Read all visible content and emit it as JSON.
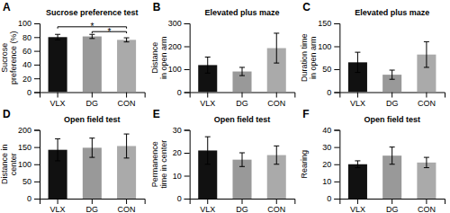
{
  "chart_data": [
    {
      "type": "bar",
      "label": "A",
      "title": "Sucrose preference test",
      "ylabel": "Sucrose\npreference (%)",
      "categories": [
        "VLX",
        "DG",
        "CON"
      ],
      "values": [
        80,
        81,
        76
      ],
      "errors": [
        4,
        3,
        3
      ],
      "colors": [
        "#111111",
        "#999999",
        "#aaaaaa"
      ],
      "ylim": [
        0,
        100
      ],
      "yticks": [
        0,
        20,
        40,
        60,
        80,
        100
      ],
      "grid": false,
      "annotations": [
        {
          "text": "*",
          "from": "VLX",
          "to": "CON",
          "y": 95
        },
        {
          "text": "*",
          "from": "DG",
          "to": "CON",
          "y": 88
        }
      ]
    },
    {
      "type": "bar",
      "label": "B",
      "title": "Elevated plus maze",
      "ylabel": "Distance\nin open arm",
      "categories": [
        "VLX",
        "DG",
        "CON"
      ],
      "values": [
        118,
        90,
        192
      ],
      "errors": [
        35,
        18,
        65
      ],
      "colors": [
        "#111111",
        "#999999",
        "#aaaaaa"
      ],
      "ylim": [
        0,
        300
      ],
      "yticks": [
        0,
        100,
        200,
        300
      ],
      "grid": false
    },
    {
      "type": "bar",
      "label": "C",
      "title": "Elevated plus maze",
      "ylabel": "Duration time\nin open arm",
      "categories": [
        "VLX",
        "DG",
        "CON"
      ],
      "values": [
        65,
        38,
        82
      ],
      "errors": [
        22,
        10,
        28
      ],
      "colors": [
        "#111111",
        "#999999",
        "#aaaaaa"
      ],
      "ylim": [
        0,
        150
      ],
      "yticks": [
        0,
        50,
        100,
        150
      ],
      "grid": false
    },
    {
      "type": "bar",
      "label": "D",
      "title": "Open field test",
      "ylabel": "Distance in\ncenter",
      "categories": [
        "VLX",
        "DG",
        "CON"
      ],
      "values": [
        142,
        148,
        153
      ],
      "errors": [
        32,
        28,
        35
      ],
      "colors": [
        "#111111",
        "#999999",
        "#aaaaaa"
      ],
      "ylim": [
        0,
        200
      ],
      "yticks": [
        0,
        50,
        100,
        150,
        200
      ],
      "grid": false
    },
    {
      "type": "bar",
      "label": "E",
      "title": "Open field test",
      "ylabel": "Permanence\ntime in center",
      "categories": [
        "VLX",
        "DG",
        "CON"
      ],
      "values": [
        21,
        17,
        19
      ],
      "errors": [
        6,
        3,
        4
      ],
      "colors": [
        "#111111",
        "#999999",
        "#aaaaaa"
      ],
      "ylim": [
        0,
        30
      ],
      "yticks": [
        0,
        10,
        20,
        30
      ],
      "grid": false
    },
    {
      "type": "bar",
      "label": "F",
      "title": "Open field test",
      "ylabel": "Rearing",
      "categories": [
        "VLX",
        "DG",
        "CON"
      ],
      "values": [
        20,
        25,
        21
      ],
      "errors": [
        2,
        5,
        3
      ],
      "colors": [
        "#111111",
        "#999999",
        "#aaaaaa"
      ],
      "ylim": [
        0,
        40
      ],
      "yticks": [
        0,
        10,
        20,
        30,
        40
      ],
      "grid": false
    }
  ]
}
